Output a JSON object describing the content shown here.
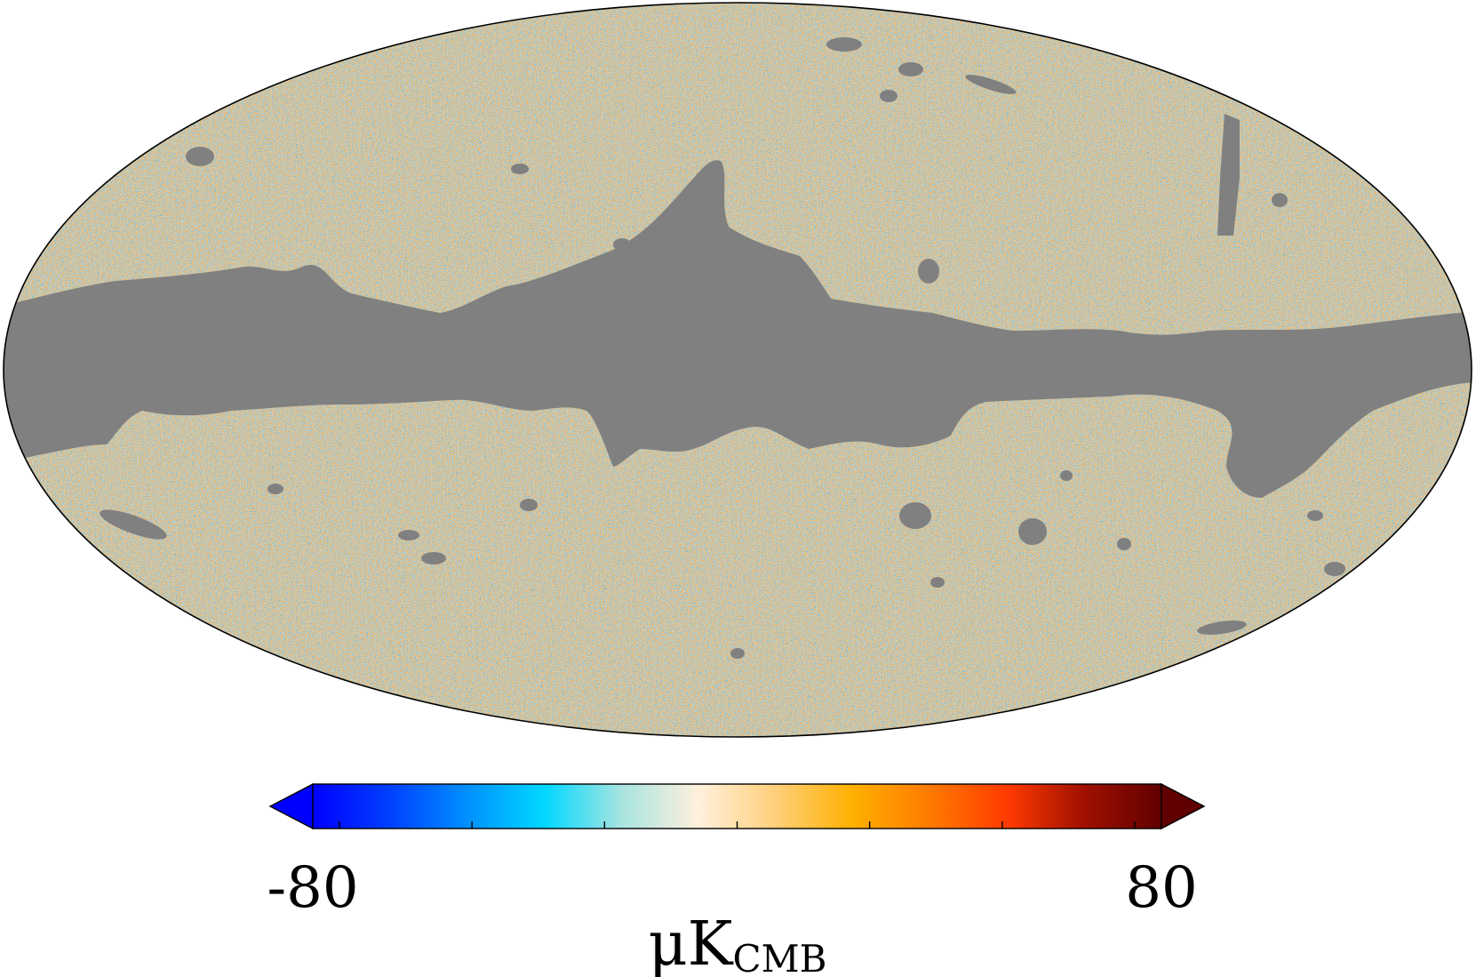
{
  "map": {
    "projection": "mollweide",
    "mask_color": "#808080",
    "outline_color": "#000000"
  },
  "colorbar": {
    "min_label": "-80",
    "max_label": "80",
    "unit_main": "μK",
    "unit_sub": "CMB",
    "range": [
      -80,
      80
    ],
    "extend": "both",
    "colors": [
      "#0000ff",
      "#0040ff",
      "#0090ff",
      "#00d8ff",
      "#a8e4e0",
      "#fff0dc",
      "#ffd07a",
      "#ffb000",
      "#ff7a00",
      "#ff3a00",
      "#a01000",
      "#600000"
    ]
  }
}
